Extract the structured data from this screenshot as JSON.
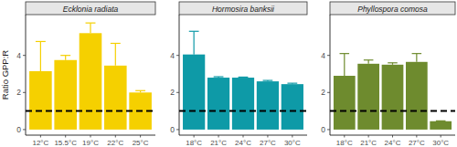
{
  "chart_data": [
    {
      "type": "bar",
      "title": "Ecklonia radiata",
      "y_label": "Ratio GPP:R",
      "categories": [
        "12°C",
        "15.5°C",
        "19°C",
        "22°C",
        "25°C"
      ],
      "values": [
        3.15,
        3.75,
        5.2,
        3.45,
        2.0
      ],
      "errors": [
        1.6,
        0.25,
        0.55,
        1.2,
        0.1
      ],
      "color": "#F5D000",
      "ylim": [
        -0.3,
        6.2
      ],
      "yticks": [
        0,
        2,
        4
      ],
      "hline": 1
    },
    {
      "type": "bar",
      "title": "Hormosira banksii",
      "categories": [
        "18°C",
        "21°C",
        "24°C",
        "27°C",
        "30°C"
      ],
      "values": [
        4.05,
        2.8,
        2.8,
        2.6,
        2.45
      ],
      "errors": [
        1.25,
        0.05,
        0.03,
        0.05,
        0.05
      ],
      "color": "#0E9AA7",
      "ylim": [
        -0.3,
        6.2
      ],
      "yticks": [
        0,
        2,
        4
      ],
      "hline": 1
    },
    {
      "type": "bar",
      "title": "Phyllospora comosa",
      "categories": [
        "18°C",
        "21°C",
        "24°C",
        "27°C",
        "30°C"
      ],
      "values": [
        2.9,
        3.55,
        3.5,
        3.65,
        0.45
      ],
      "errors": [
        1.2,
        0.2,
        0.1,
        0.45,
        0.02
      ],
      "color": "#6E8B2E",
      "ylim": [
        -0.3,
        6.2
      ],
      "yticks": [
        0,
        2,
        4
      ],
      "hline": 1
    }
  ]
}
